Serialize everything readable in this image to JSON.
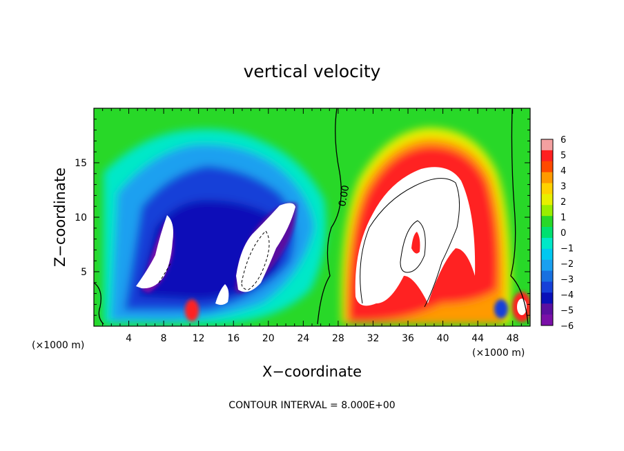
{
  "chart_data": {
    "type": "heatmap",
    "title": "vertical velocity",
    "xlabel": "X−coordinate",
    "ylabel": "Z−coordinate",
    "x_unit": "(×1000 m)",
    "x_unit_right": "(×1000 m)",
    "xlim": [
      0,
      50
    ],
    "ylim": [
      0,
      20
    ],
    "x_ticks": [
      4,
      8,
      12,
      16,
      20,
      24,
      28,
      32,
      36,
      40,
      44,
      48
    ],
    "y_ticks": [
      5,
      10,
      15
    ],
    "colorbar": {
      "ticks": [
        "6",
        "5",
        "4",
        "3",
        "2",
        "1",
        "0",
        "−1",
        "−2",
        "−3",
        "−4",
        "−5",
        "−6"
      ],
      "min": -6,
      "max": 6,
      "colors": [
        "#f4a0a0",
        "#ff2020",
        "#ff4a00",
        "#ff9a00",
        "#ffd200",
        "#e8f000",
        "#9aee00",
        "#28d828",
        "#00e070",
        "#00e8c8",
        "#00c8f0",
        "#1aa0f0",
        "#1870e0",
        "#1640d8",
        "#0a10b8",
        "#5a10a0",
        "#7a10a8"
      ]
    },
    "contour_label": "0.00",
    "contour_interval_text": "CONTOUR INTERVAL = 8.000E+00",
    "features": [
      {
        "kind": "updraft-core",
        "x_range": [
          29,
          46
        ],
        "z_range": [
          2,
          16
        ],
        "max": 8
      },
      {
        "kind": "downdraft-core",
        "x_range": [
          4,
          26
        ],
        "z_range": [
          1,
          12
        ],
        "min": -8
      }
    ]
  }
}
